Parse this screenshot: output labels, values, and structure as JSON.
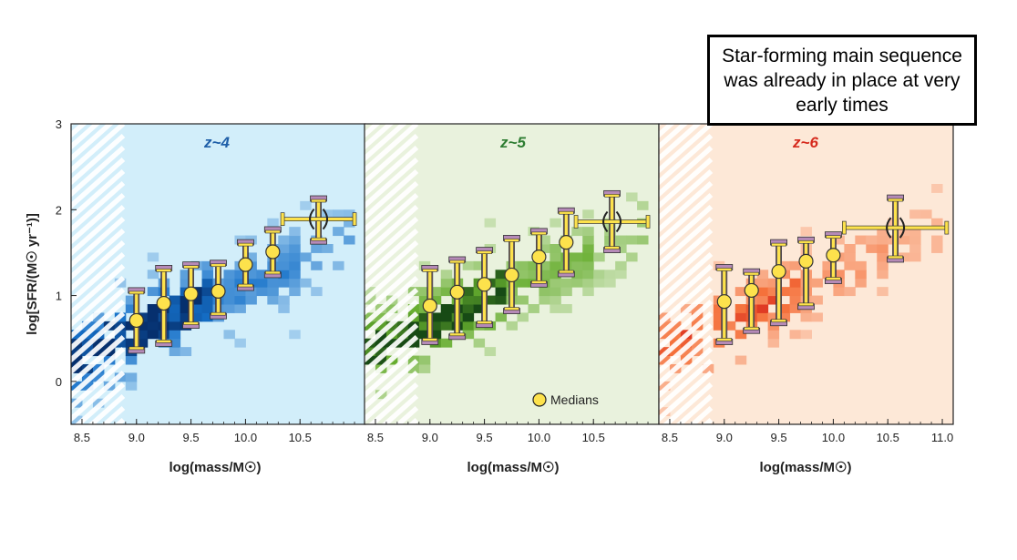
{
  "callout": {
    "text": "Star-forming main sequence was already in place at very early times"
  },
  "chart_data": [
    {
      "type": "heatmap",
      "title": "z~4",
      "title_color": "#1f5fa8",
      "background": "#d2eefa",
      "density_color": "#1570c9",
      "density_dark": "#06306e",
      "xlabel": "log(mass/M☉)",
      "ylabel": "log[SFR/(M☉ yr⁻¹)]",
      "xlim": [
        8.4,
        11.1
      ],
      "ylim": [
        -0.5,
        3.0
      ],
      "xticks": [
        "8.5",
        "9.0",
        "9.5",
        "10.0",
        "10.5"
      ],
      "yticks": [
        "0",
        "1",
        "2",
        "3"
      ],
      "completeness_limit_mass": 8.88,
      "medians": [
        {
          "x": 9.0,
          "y": 0.71,
          "yerr": [
            0.35,
            0.35
          ]
        },
        {
          "x": 9.25,
          "y": 0.91,
          "yerr": [
            0.47,
            0.41
          ]
        },
        {
          "x": 9.5,
          "y": 1.02,
          "yerr": [
            0.37,
            0.34
          ]
        },
        {
          "x": 9.75,
          "y": 1.05,
          "yerr": [
            0.29,
            0.33
          ]
        },
        {
          "x": 10.0,
          "y": 1.36,
          "yerr": [
            0.27,
            0.26
          ]
        },
        {
          "x": 10.25,
          "y": 1.51,
          "yerr": [
            0.27,
            0.26
          ]
        },
        {
          "x": 10.67,
          "y": 1.89,
          "yerr": [
            0.26,
            0.24
          ],
          "xerr": [
            0.33,
            0.33
          ]
        }
      ]
    },
    {
      "type": "heatmap",
      "title": "z~5",
      "title_color": "#2e7d32",
      "background": "#e9f2dd",
      "density_color": "#66ad2e",
      "density_dark": "#174a15",
      "xlabel": "log(mass/M☉)",
      "ylabel": "",
      "xlim": [
        8.4,
        11.1
      ],
      "ylim": [
        -0.5,
        3.0
      ],
      "xticks": [
        "8.5",
        "9.0",
        "9.5",
        "10.0",
        "10.5"
      ],
      "yticks": [],
      "completeness_limit_mass": 8.88,
      "legend": "Medians",
      "medians": [
        {
          "x": 9.0,
          "y": 0.88,
          "yerr": [
            0.42,
            0.44
          ]
        },
        {
          "x": 9.25,
          "y": 1.04,
          "yerr": [
            0.52,
            0.38
          ]
        },
        {
          "x": 9.5,
          "y": 1.13,
          "yerr": [
            0.47,
            0.4
          ]
        },
        {
          "x": 9.75,
          "y": 1.24,
          "yerr": [
            0.42,
            0.43
          ]
        },
        {
          "x": 10.0,
          "y": 1.45,
          "yerr": [
            0.32,
            0.3
          ]
        },
        {
          "x": 10.25,
          "y": 1.62,
          "yerr": [
            0.37,
            0.37
          ]
        },
        {
          "x": 10.67,
          "y": 1.86,
          "yerr": [
            0.33,
            0.33
          ],
          "xerr": [
            0.33,
            0.33
          ]
        }
      ]
    },
    {
      "type": "heatmap",
      "title": "z~6",
      "title_color": "#d62b1e",
      "background": "#fde8d7",
      "density_color": "#f5703a",
      "density_dark": "#d01414",
      "xlabel": "log(mass/M☉)",
      "ylabel": "",
      "xlim": [
        8.4,
        11.1
      ],
      "ylim": [
        -0.5,
        3.0
      ],
      "xticks": [
        "8.5",
        "9.0",
        "9.5",
        "10.0",
        "10.5",
        "11.0"
      ],
      "yticks": [],
      "completeness_limit_mass": 8.88,
      "medians": [
        {
          "x": 9.0,
          "y": 0.93,
          "yerr": [
            0.47,
            0.4
          ]
        },
        {
          "x": 9.25,
          "y": 1.06,
          "yerr": [
            0.47,
            0.22
          ]
        },
        {
          "x": 9.5,
          "y": 1.28,
          "yerr": [
            0.6,
            0.34
          ]
        },
        {
          "x": 9.75,
          "y": 1.4,
          "yerr": [
            0.53,
            0.25
          ]
        },
        {
          "x": 10.0,
          "y": 1.47,
          "yerr": [
            0.3,
            0.24
          ]
        },
        {
          "x": 10.57,
          "y": 1.79,
          "yerr": [
            0.37,
            0.35
          ],
          "xerr": [
            0.47,
            0.47
          ]
        }
      ]
    }
  ]
}
